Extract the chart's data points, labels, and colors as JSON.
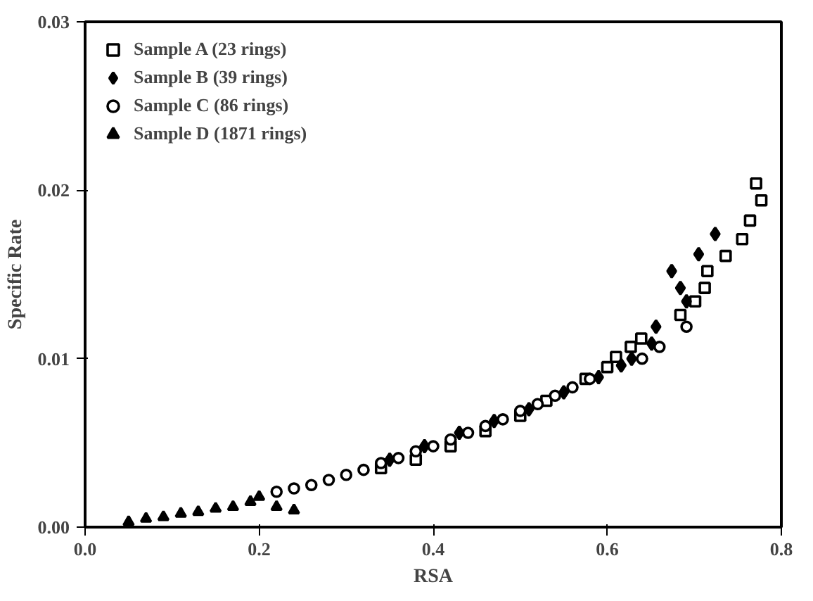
{
  "chart_data": {
    "type": "scatter",
    "xlabel": "RSA",
    "ylabel": "Specific Rate",
    "xlim": [
      0,
      0.8
    ],
    "ylim": [
      0,
      0.03
    ],
    "xticks": [
      {
        "value": 0,
        "label": "0.0"
      },
      0.2,
      0.4,
      0.6,
      0.8
    ],
    "yticks": [
      {
        "value": 0,
        "label": "0.00"
      },
      0.01,
      0.02,
      0.03
    ],
    "grid": false,
    "legend": "top left",
    "series": [
      {
        "name": "Sample A (23 rings)",
        "color": "#000000",
        "marker": "square",
        "x": [
          0.34,
          0.38,
          0.42,
          0.46,
          0.5,
          0.53,
          0.575,
          0.6,
          0.61,
          0.627,
          0.639,
          0.684,
          0.701,
          0.712,
          0.715,
          0.736,
          0.755,
          0.764,
          0.771,
          0.777
        ],
        "values": [
          0.0035,
          0.004,
          0.0048,
          0.0057,
          0.0066,
          0.0075,
          0.0088,
          0.0095,
          0.0101,
          0.0107,
          0.0112,
          0.0126,
          0.0134,
          0.0142,
          0.0152,
          0.0161,
          0.0171,
          0.0182,
          0.0204,
          0.0194
        ]
      },
      {
        "name": "Sample B (39 rings)",
        "color": "#000000",
        "marker": "diamond",
        "x": [
          0.35,
          0.39,
          0.43,
          0.47,
          0.51,
          0.55,
          0.59,
          0.616,
          0.628,
          0.651,
          0.656,
          0.674,
          0.684,
          0.691,
          0.705,
          0.724
        ],
        "values": [
          0.004,
          0.0048,
          0.0056,
          0.0063,
          0.007,
          0.008,
          0.0089,
          0.0096,
          0.01,
          0.0109,
          0.0119,
          0.0152,
          0.0142,
          0.0134,
          0.0162,
          0.0174
        ]
      },
      {
        "name": "Sample C (86 rings)",
        "color": "#000000",
        "marker": "circle",
        "x": [
          0.22,
          0.24,
          0.26,
          0.28,
          0.3,
          0.32,
          0.34,
          0.36,
          0.38,
          0.4,
          0.42,
          0.44,
          0.46,
          0.48,
          0.5,
          0.52,
          0.54,
          0.56,
          0.58,
          0.64,
          0.66,
          0.691
        ],
        "values": [
          0.0021,
          0.0023,
          0.0025,
          0.0028,
          0.0031,
          0.0034,
          0.0038,
          0.0041,
          0.0045,
          0.0048,
          0.0052,
          0.0056,
          0.006,
          0.0064,
          0.0069,
          0.0073,
          0.0078,
          0.0083,
          0.0088,
          0.01,
          0.0107,
          0.0119
        ]
      },
      {
        "name": "Sample D (1871 rings)",
        "color": "#000000",
        "marker": "triangle",
        "x": [
          0.05,
          0.07,
          0.09,
          0.11,
          0.13,
          0.15,
          0.17,
          0.19,
          0.2,
          0.22,
          0.24
        ],
        "values": [
          0.0003,
          0.0005,
          0.0006,
          0.0008,
          0.0009,
          0.0011,
          0.0012,
          0.0015,
          0.0018,
          0.0012,
          0.001
        ]
      }
    ]
  }
}
